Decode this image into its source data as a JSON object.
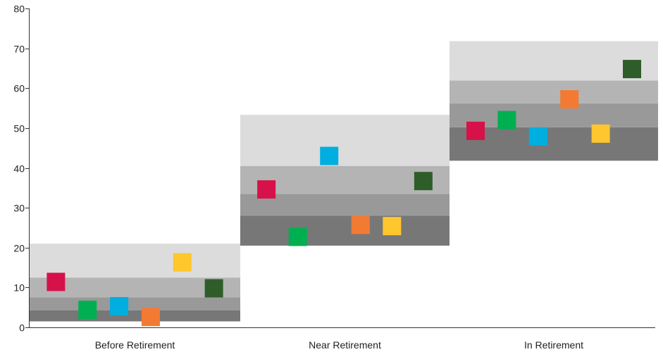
{
  "chart_data": {
    "type": "scatter",
    "title": "",
    "xlabel": "",
    "ylabel": "",
    "ylim": [
      0,
      80
    ],
    "yticks": [
      0,
      10,
      20,
      30,
      40,
      50,
      60,
      70,
      80
    ],
    "grid": false,
    "legend": "none",
    "categories": [
      "Before Retirement",
      "Near Retirement",
      "In Retirement"
    ],
    "bands": [
      {
        "category": "Before Retirement",
        "ranges": [
          [
            1.5,
            4.3
          ],
          [
            4.3,
            7.5
          ],
          [
            7.5,
            12.5
          ],
          [
            12.5,
            21.0
          ]
        ]
      },
      {
        "category": "Near Retirement",
        "ranges": [
          [
            20.5,
            28.0
          ],
          [
            28.0,
            33.5
          ],
          [
            33.5,
            40.5
          ],
          [
            40.5,
            53.3
          ]
        ]
      },
      {
        "category": "In Retirement",
        "ranges": [
          [
            41.8,
            50.2
          ],
          [
            50.2,
            56.2
          ],
          [
            56.2,
            61.9
          ],
          [
            61.9,
            71.8
          ]
        ]
      }
    ],
    "band_colors": [
      "#777777",
      "#999999",
      "#b4b4b4",
      "#dcdcdc"
    ],
    "series": [
      {
        "color": "#d7114a",
        "values": [
          11.4,
          34.6,
          49.3
        ]
      },
      {
        "color": "#00b050",
        "values": [
          4.4,
          22.7,
          52.0
        ]
      },
      {
        "color": "#00aee0",
        "values": [
          5.3,
          43.0,
          47.9
        ]
      },
      {
        "color": "#f37a33",
        "values": [
          2.6,
          25.7,
          57.2
        ]
      },
      {
        "color": "#ffc62e",
        "values": [
          16.3,
          25.4,
          48.6
        ]
      },
      {
        "color": "#2f5d2a",
        "values": [
          9.8,
          36.7,
          64.8
        ]
      }
    ]
  }
}
